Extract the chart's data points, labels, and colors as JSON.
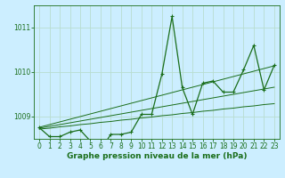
{
  "title": "Graphe pression niveau de la mer (hPa)",
  "background_color": "#cceeff",
  "grid_color": "#b8ddd0",
  "line_color": "#1a6e1a",
  "x_values": [
    0,
    1,
    2,
    3,
    4,
    5,
    6,
    7,
    8,
    9,
    10,
    11,
    12,
    13,
    14,
    15,
    16,
    17,
    18,
    19,
    20,
    21,
    22,
    23
  ],
  "y_main": [
    1008.75,
    1008.55,
    1008.55,
    1008.65,
    1008.7,
    1008.45,
    1008.25,
    1008.6,
    1008.6,
    1008.65,
    1009.05,
    1009.05,
    1009.95,
    1011.25,
    1009.65,
    1009.05,
    1009.75,
    1009.8,
    1009.55,
    1009.55,
    1010.05,
    1010.6,
    1009.6,
    1010.15
  ],
  "y_trend1": [
    1008.72,
    1008.74,
    1008.77,
    1008.79,
    1008.82,
    1008.84,
    1008.87,
    1008.89,
    1008.92,
    1008.94,
    1008.97,
    1008.99,
    1009.02,
    1009.04,
    1009.07,
    1009.09,
    1009.12,
    1009.14,
    1009.17,
    1009.19,
    1009.22,
    1009.24,
    1009.27,
    1009.29
  ],
  "y_trend2": [
    1008.74,
    1008.78,
    1008.82,
    1008.86,
    1008.9,
    1008.94,
    1008.98,
    1009.02,
    1009.06,
    1009.1,
    1009.14,
    1009.18,
    1009.22,
    1009.26,
    1009.3,
    1009.34,
    1009.38,
    1009.42,
    1009.46,
    1009.5,
    1009.54,
    1009.58,
    1009.62,
    1009.66
  ],
  "y_trend3": [
    1008.76,
    1008.82,
    1008.88,
    1008.94,
    1009.0,
    1009.06,
    1009.12,
    1009.18,
    1009.24,
    1009.3,
    1009.36,
    1009.42,
    1009.48,
    1009.54,
    1009.6,
    1009.66,
    1009.72,
    1009.78,
    1009.84,
    1009.9,
    1009.96,
    1010.02,
    1010.08,
    1010.14
  ],
  "ylim": [
    1008.5,
    1011.5
  ],
  "yticks": [
    1009,
    1010,
    1011
  ],
  "xlim": [
    -0.5,
    23.5
  ],
  "xticks": [
    0,
    1,
    2,
    3,
    4,
    5,
    6,
    7,
    8,
    9,
    10,
    11,
    12,
    13,
    14,
    15,
    16,
    17,
    18,
    19,
    20,
    21,
    22,
    23
  ],
  "title_fontsize": 6.5,
  "tick_fontsize": 5.5
}
